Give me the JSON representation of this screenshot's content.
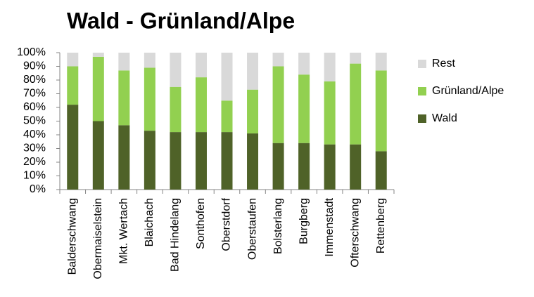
{
  "chart_data": {
    "type": "stacked_bar",
    "title": "Wald - Grünland/Alpe",
    "categories": [
      "Balderschwang",
      "Obermaiselstein",
      "Mkt. Wertach",
      "Blaichach",
      "Bad Hindelang",
      "Sonthofen",
      "Oberstdorf",
      "Oberstaufen",
      "Bolsterlang",
      "Burgberg",
      "Immenstadt",
      "Ofterschwang",
      "Rettenberg"
    ],
    "series": [
      {
        "name": "Wald",
        "color": "#4f6228",
        "values": [
          62,
          50,
          47,
          43,
          42,
          42,
          42,
          41,
          34,
          34,
          33,
          33,
          28
        ]
      },
      {
        "name": "Grünland/Alpe",
        "color": "#92d050",
        "values": [
          28,
          47,
          40,
          46,
          33,
          40,
          23,
          32,
          56,
          50,
          46,
          59,
          59
        ]
      },
      {
        "name": "Rest",
        "color": "#d9d9d9",
        "values": [
          10,
          3,
          13,
          11,
          25,
          18,
          35,
          27,
          10,
          16,
          21,
          8,
          13
        ]
      }
    ],
    "ylim": [
      0,
      100
    ],
    "yticks": [
      {
        "value": 0,
        "label": "0%"
      },
      {
        "value": 10,
        "label": "10%"
      },
      {
        "value": 20,
        "label": "20%"
      },
      {
        "value": 30,
        "label": "30%"
      },
      {
        "value": 40,
        "label": "40%"
      },
      {
        "value": 50,
        "label": "50%"
      },
      {
        "value": 60,
        "label": "60%"
      },
      {
        "value": 70,
        "label": "70%"
      },
      {
        "value": 80,
        "label": "80%"
      },
      {
        "value": 90,
        "label": "90%"
      },
      {
        "value": 100,
        "label": "100%"
      }
    ],
    "grid": false,
    "legend": "right"
  }
}
